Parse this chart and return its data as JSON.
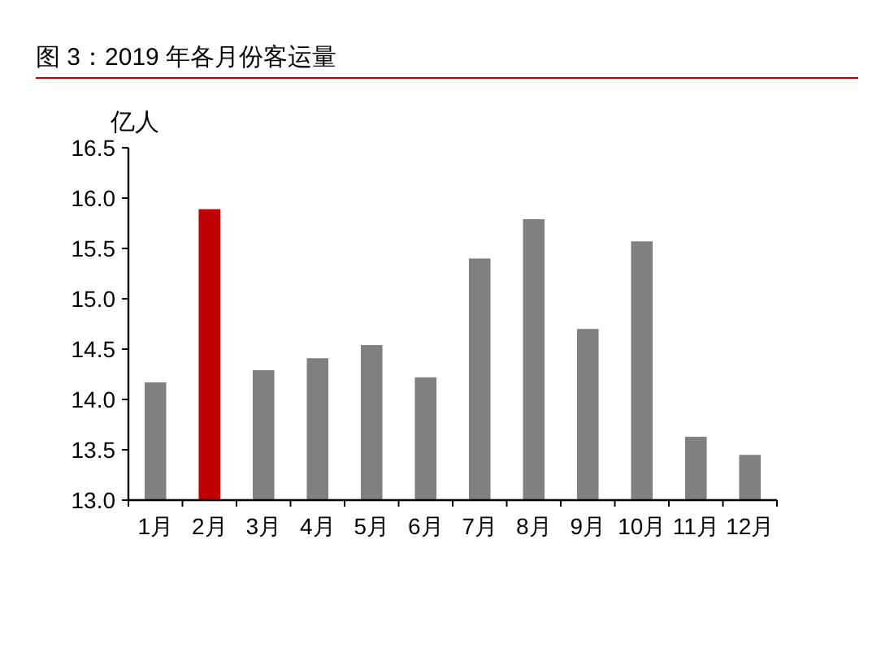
{
  "chart_data": {
    "type": "bar",
    "title": "图 3：2019 年各月份客运量",
    "ylabel": "亿人",
    "categories": [
      "1月",
      "2月",
      "3月",
      "4月",
      "5月",
      "6月",
      "7月",
      "8月",
      "9月",
      "10月",
      "11月",
      "12月"
    ],
    "values": [
      14.17,
      15.89,
      14.29,
      14.41,
      14.54,
      14.22,
      15.4,
      15.79,
      14.7,
      15.57,
      13.63,
      13.45
    ],
    "colors": [
      "#808080",
      "#c00000",
      "#808080",
      "#808080",
      "#808080",
      "#808080",
      "#808080",
      "#808080",
      "#808080",
      "#808080",
      "#808080",
      "#808080"
    ],
    "ylim": [
      13,
      16.5
    ],
    "yticks": [
      {
        "value": 13,
        "label": "13.0"
      },
      {
        "value": 13.5,
        "label": "13.5"
      },
      {
        "value": 14,
        "label": "14.0"
      },
      {
        "value": 14.5,
        "label": "14.5"
      },
      {
        "value": 15,
        "label": "15.0"
      },
      {
        "value": 15.5,
        "label": "15.5"
      },
      {
        "value": 16,
        "label": "16.0"
      },
      {
        "value": 16.5,
        "label": "16.5"
      }
    ]
  }
}
